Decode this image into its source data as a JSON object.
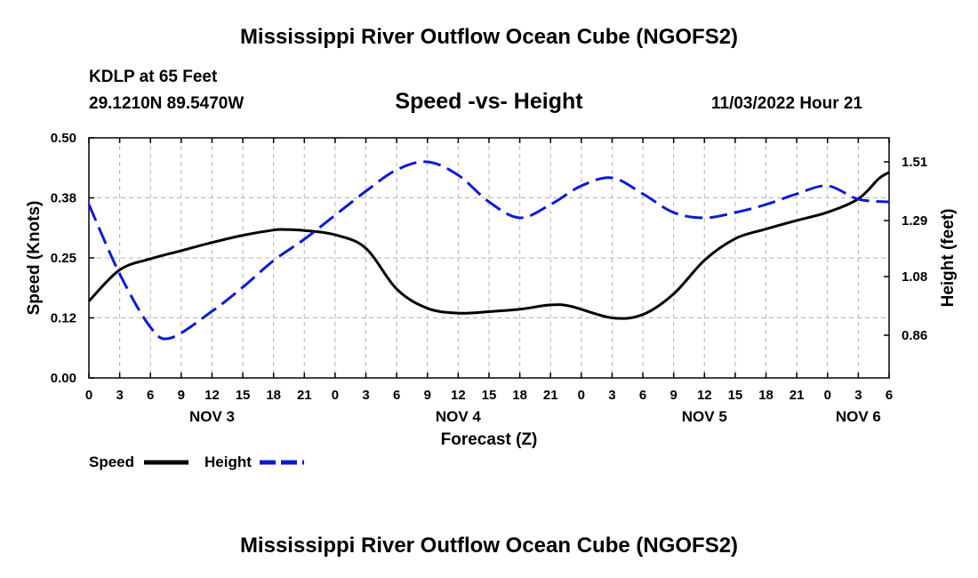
{
  "header": {
    "title": "Mississippi River Outflow Ocean Cube (NGOFS2)",
    "station": "KDLP at 65 Feet",
    "coords": "29.1210N  89.5470W",
    "subtitle": "Speed -vs- Height",
    "datetime": "11/03/2022 Hour 21"
  },
  "footer": {
    "title": "Mississippi River Outflow Ocean Cube (NGOFS2)"
  },
  "colors": {
    "speed": "#000000",
    "height": "#0a1ad6",
    "grid": "#b4b4b4"
  },
  "chart_data": {
    "type": "line",
    "xlabel": "Forecast (Z)",
    "ylabel": "Speed (Knots)",
    "y2label": "Height (feet)",
    "xlim": [
      0,
      78
    ],
    "ylim": [
      0,
      0.5
    ],
    "y2lim": [
      0.7,
      1.6
    ],
    "x_ticks": [
      0,
      3,
      6,
      9,
      12,
      15,
      18,
      21,
      24,
      27,
      30,
      33,
      36,
      39,
      42,
      45,
      48,
      51,
      54,
      57,
      60,
      63,
      66,
      69,
      72,
      75,
      78
    ],
    "x_tick_labels": [
      "0",
      "3",
      "6",
      "9",
      "12",
      "15",
      "18",
      "21",
      "0",
      "3",
      "6",
      "9",
      "12",
      "15",
      "18",
      "21",
      "0",
      "3",
      "6",
      "9",
      "12",
      "15",
      "18",
      "21",
      "0",
      "3",
      "6"
    ],
    "y_ticks": [
      0,
      0.125,
      0.25,
      0.375,
      0.5
    ],
    "y_tick_labels": [
      "0.00",
      "0.12",
      "0.25",
      "0.38",
      "0.50"
    ],
    "y2_ticks": [
      0.86,
      1.08,
      1.29,
      1.51
    ],
    "y2_tick_labels": [
      "0.86",
      "1.08",
      "1.29",
      "1.51"
    ],
    "date_labels": [
      {
        "label": "NOV 3",
        "x": 12
      },
      {
        "label": "NOV 4",
        "x": 36
      },
      {
        "label": "NOV 5",
        "x": 60
      },
      {
        "label": "NOV 6",
        "x": 75
      }
    ],
    "legend": {
      "position": "bottom-left",
      "entries": [
        "Speed",
        "Height"
      ]
    },
    "series": [
      {
        "name": "Speed",
        "axis": "left",
        "style": "solid",
        "x": [
          0,
          3,
          6,
          9,
          12,
          15,
          18,
          19,
          21,
          24,
          27,
          30,
          33,
          36,
          39,
          42,
          45,
          47,
          51,
          54,
          57,
          60,
          63,
          66,
          69,
          72,
          75,
          77,
          78
        ],
        "y": [
          0.16,
          0.225,
          0.248,
          0.265,
          0.282,
          0.297,
          0.308,
          0.309,
          0.307,
          0.298,
          0.27,
          0.185,
          0.145,
          0.135,
          0.138,
          0.143,
          0.152,
          0.149,
          0.125,
          0.132,
          0.175,
          0.245,
          0.29,
          0.31,
          0.328,
          0.345,
          0.373,
          0.415,
          0.428
        ]
      },
      {
        "name": "Height",
        "axis": "right",
        "style": "dashed",
        "x": [
          0,
          3,
          6,
          8,
          12,
          15,
          18,
          21,
          24,
          27,
          30,
          33,
          36,
          39,
          42,
          45,
          48,
          51,
          54,
          57,
          60,
          63,
          66,
          69,
          72,
          75,
          78
        ],
        "y": [
          1.35,
          1.09,
          0.89,
          0.85,
          0.95,
          1.04,
          1.14,
          1.22,
          1.31,
          1.4,
          1.48,
          1.51,
          1.46,
          1.36,
          1.3,
          1.35,
          1.42,
          1.45,
          1.39,
          1.32,
          1.3,
          1.32,
          1.35,
          1.39,
          1.42,
          1.37,
          1.36
        ]
      }
    ]
  }
}
